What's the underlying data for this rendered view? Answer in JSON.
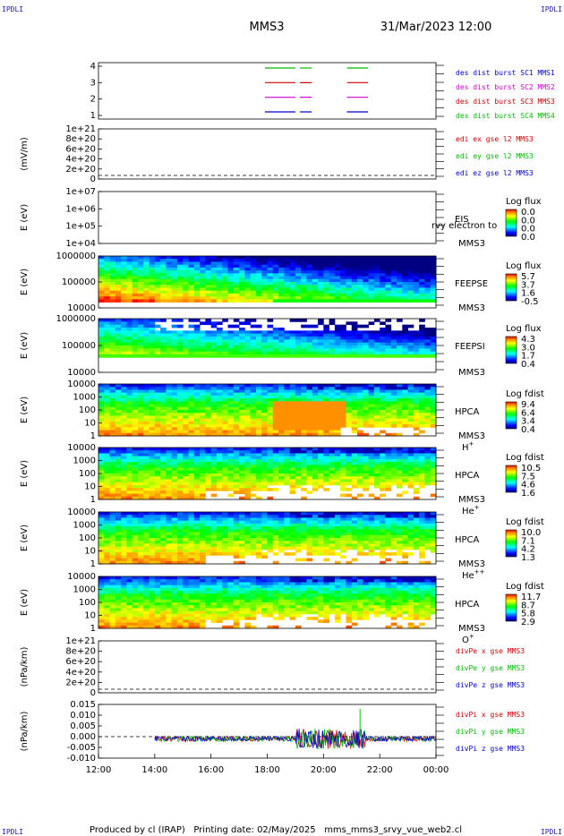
{
  "header": {
    "corner_left": "IPDLI",
    "corner_right": "IPDLI",
    "spacecraft": "MMS3",
    "datetime": "31/Mar/2023 12:00"
  },
  "footer": {
    "corner_left": "IPDLI",
    "corner_right": "IPDLI",
    "credits": "Produced by cl (IRAP)   Printing date: 02/May/2025   mms_mms3_srvy_vue_web2.cl"
  },
  "time_axis": {
    "ticks": [
      "12:00",
      "14:00",
      "16:00",
      "18:00",
      "20:00",
      "22:00",
      "00:00"
    ],
    "range_hours": [
      12,
      24
    ]
  },
  "panels": [
    {
      "id": "burst",
      "yticks": [
        "4",
        "3",
        "2",
        "1"
      ],
      "ylabel": "",
      "legend": [
        {
          "text": "des dist burst SC1 MMS1",
          "color": "#0000cc"
        },
        {
          "text": "des dist burst SC2 MMS2",
          "color": "#cc00cc"
        },
        {
          "text": "des dist burst SC3 MMS3",
          "color": "#cc0000"
        },
        {
          "text": "des dist burst SC4 MMS4",
          "color": "#00bb00"
        }
      ]
    },
    {
      "id": "edi-e",
      "yticks": [
        "1e+21",
        "8e+20",
        "6e+20",
        "4e+20",
        "2e+20",
        "0"
      ],
      "ylabel": "(mV/m)",
      "legend": [
        {
          "text": "edi ex gse l2 MMS3",
          "color": "#cc0000"
        },
        {
          "text": "edi ey gse l2 MMS3",
          "color": "#00bb00"
        },
        {
          "text": "edi ez gse l2 MMS3",
          "color": "#0000cc"
        }
      ]
    },
    {
      "id": "eis",
      "yticks": [
        "1e+07",
        "1e+06",
        "1e+05",
        "1e+04"
      ],
      "ylabel": "E (eV)",
      "inst": "EIS",
      "sc": "MMS3",
      "overlay": "rvy electron to",
      "cbar_title": "Log flux",
      "cbar_ticks": [
        "0.0",
        "0.0",
        "0.0",
        "0.0"
      ]
    },
    {
      "id": "feepse",
      "yticks": [
        "1000000",
        "100000",
        "10000"
      ],
      "ylabel": "E (eV)",
      "inst": "FEEPSE",
      "sc": "MMS3",
      "cbar_title": "Log flux",
      "cbar_ticks": [
        "5.7",
        "3.7",
        "1.6",
        "-0.5"
      ]
    },
    {
      "id": "feepsi",
      "yticks": [
        "1000000",
        "100000",
        "10000"
      ],
      "ylabel": "E (eV)",
      "inst": "FEEPSI",
      "sc": "MMS3",
      "cbar_title": "Log flux",
      "cbar_ticks": [
        "4.3",
        "3.0",
        "1.7",
        "0.4"
      ]
    },
    {
      "id": "hpca-h",
      "yticks": [
        "10000",
        "1000",
        "100",
        "10",
        "1"
      ],
      "ylabel": "E (eV)",
      "inst": "HPCA",
      "sc": "MMS3",
      "species": "H",
      "species_sup": "+",
      "cbar_title": "Log fdist",
      "cbar_ticks": [
        "9.4",
        "6.4",
        "3.4",
        "0.4"
      ]
    },
    {
      "id": "hpca-he",
      "yticks": [
        "10000",
        "1000",
        "100",
        "10",
        "1"
      ],
      "ylabel": "E (eV)",
      "inst": "HPCA",
      "sc": "MMS3",
      "species": "He",
      "species_sup": "+",
      "cbar_title": "Log fdist",
      "cbar_ticks": [
        "10.5",
        "7.5",
        "4.6",
        "1.6"
      ]
    },
    {
      "id": "hpca-hepp",
      "yticks": [
        "10000",
        "1000",
        "100",
        "10",
        "1"
      ],
      "ylabel": "E (eV)",
      "inst": "HPCA",
      "sc": "MMS3",
      "species": "He",
      "species_sup": "++",
      "cbar_title": "Log fdist",
      "cbar_ticks": [
        "10.0",
        "7.1",
        "4.2",
        "1.3"
      ]
    },
    {
      "id": "hpca-o",
      "yticks": [
        "10000",
        "1000",
        "100",
        "10",
        "1"
      ],
      "ylabel": "E (eV)",
      "inst": "HPCA",
      "sc": "MMS3",
      "species": "O",
      "species_sup": "+",
      "cbar_title": "Log fdist",
      "cbar_ticks": [
        "11.7",
        "8.7",
        "5.8",
        "2.9"
      ]
    },
    {
      "id": "divpe",
      "yticks": [
        "1e+21",
        "8e+20",
        "6e+20",
        "4e+20",
        "2e+20",
        "0"
      ],
      "ylabel": "(nPa/km)",
      "legend": [
        {
          "text": "divPe x gse MMS3",
          "color": "#cc0000"
        },
        {
          "text": "divPe y gse MMS3",
          "color": "#00bb00"
        },
        {
          "text": "divPe z gse MMS3",
          "color": "#0000cc"
        }
      ]
    },
    {
      "id": "divpi",
      "yticks": [
        "0.015",
        "0.010",
        "0.005",
        "0.000",
        "-0.005",
        "-0.010"
      ],
      "ylabel": "(nPa/km)",
      "legend": [
        {
          "text": "divPi x gse MMS3",
          "color": "#cc0000"
        },
        {
          "text": "divPi y gse MMS3",
          "color": "#00bb00"
        },
        {
          "text": "divPi z gse MMS3",
          "color": "#0000cc"
        }
      ]
    }
  ],
  "chart_data": {
    "type": "heatmap",
    "title": "MMS3 31/Mar/2023 12:00",
    "x_range": [
      "12:00",
      "00:00"
    ],
    "burst_intervals": [
      {
        "sc": "MMS1",
        "level": 1,
        "times": [
          [
            "17:55",
            "19:00"
          ],
          [
            "19:10",
            "19:35"
          ],
          [
            "20:50",
            "21:35"
          ]
        ]
      },
      {
        "sc": "MMS2",
        "level": 2,
        "times": [
          [
            "17:55",
            "19:00"
          ],
          [
            "19:10",
            "19:35"
          ],
          [
            "20:50",
            "21:35"
          ]
        ]
      },
      {
        "sc": "MMS3",
        "level": 3,
        "times": [
          [
            "17:55",
            "19:00"
          ],
          [
            "19:10",
            "19:35"
          ],
          [
            "20:50",
            "21:35"
          ]
        ]
      },
      {
        "sc": "MMS4",
        "level": 4,
        "times": [
          [
            "17:55",
            "19:00"
          ],
          [
            "19:10",
            "19:35"
          ],
          [
            "20:50",
            "21:35"
          ]
        ]
      }
    ],
    "divpi_ylim": [
      -0.01,
      0.015
    ],
    "divpi_data_start": "14:00",
    "divpe_ylim": [
      0,
      1e+21
    ],
    "edi_ylim": [
      0,
      1e+21
    ]
  }
}
